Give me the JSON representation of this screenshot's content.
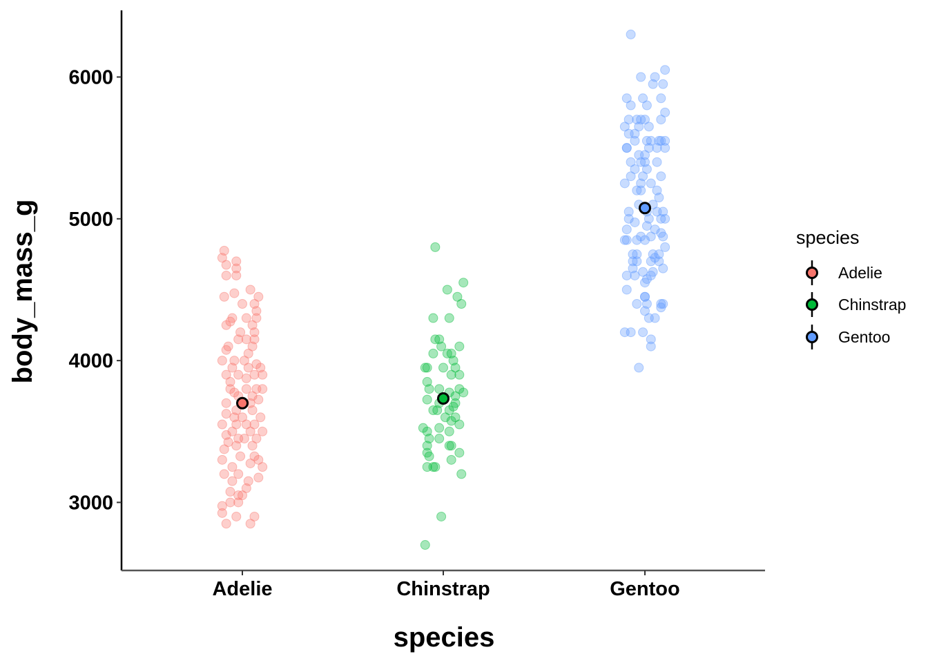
{
  "chart_data": {
    "type": "scatter",
    "subtype": "jitter-with-mean",
    "title": "",
    "xlabel": "species",
    "ylabel": "body_mass_g",
    "categories": [
      "Adelie",
      "Chinstrap",
      "Gentoo"
    ],
    "ylim": [
      2520,
      6470
    ],
    "yticks": [
      3000,
      4000,
      5000,
      6000
    ],
    "grid": false,
    "legend": {
      "title": "species",
      "position": "right",
      "entries": [
        "Adelie",
        "Chinstrap",
        "Gentoo"
      ]
    },
    "colors": {
      "Adelie": "#F8766D",
      "Chinstrap": "#00BA38",
      "Gentoo": "#619CFF"
    },
    "series": [
      {
        "name": "Adelie",
        "mean": 3700,
        "points": [
          [
            -0.09,
            4775
          ],
          [
            -0.1,
            4725
          ],
          [
            -0.03,
            4700
          ],
          [
            -0.03,
            4650
          ],
          [
            -0.08,
            4675
          ],
          [
            -0.08,
            4600
          ],
          [
            -0.03,
            4600
          ],
          [
            0.04,
            4500
          ],
          [
            -0.04,
            4475
          ],
          [
            -0.09,
            4450
          ],
          [
            0.08,
            4450
          ],
          [
            0.06,
            4400
          ],
          [
            0.07,
            4350
          ],
          [
            0,
            4400
          ],
          [
            -0.05,
            4300
          ],
          [
            0.02,
            4300
          ],
          [
            0.07,
            4300
          ],
          [
            -0.06,
            4275
          ],
          [
            -0.08,
            4250
          ],
          [
            0.05,
            4250
          ],
          [
            -0.01,
            4200
          ],
          [
            0.06,
            4200
          ],
          [
            -0.02,
            4150
          ],
          [
            0.02,
            4150
          ],
          [
            0.06,
            4150
          ],
          [
            -0.07,
            4100
          ],
          [
            0.05,
            4100
          ],
          [
            -0.08,
            4075
          ],
          [
            0.03,
            4050
          ],
          [
            -0.04,
            4000
          ],
          [
            0.01,
            4000
          ],
          [
            -0.1,
            4000
          ],
          [
            0.07,
            3975
          ],
          [
            0.09,
            3950
          ],
          [
            -0.05,
            3950
          ],
          [
            0.03,
            3950
          ],
          [
            -0.08,
            3900
          ],
          [
            -0.02,
            3900
          ],
          [
            0.06,
            3900
          ],
          [
            0.1,
            3900
          ],
          [
            0.02,
            3875
          ],
          [
            -0.06,
            3850
          ],
          [
            -0.06,
            3800
          ],
          [
            0.02,
            3800
          ],
          [
            0.07,
            3800
          ],
          [
            0.1,
            3800
          ],
          [
            -0.04,
            3775
          ],
          [
            0.05,
            3750
          ],
          [
            -0.02,
            3750
          ],
          [
            0.08,
            3725
          ],
          [
            -0.08,
            3700
          ],
          [
            0.01,
            3700
          ],
          [
            0.04,
            3700
          ],
          [
            -0.03,
            3650
          ],
          [
            0.05,
            3650
          ],
          [
            -0.08,
            3625
          ],
          [
            0,
            3600
          ],
          [
            -0.04,
            3600
          ],
          [
            0.09,
            3600
          ],
          [
            -0.03,
            3550
          ],
          [
            0.02,
            3550
          ],
          [
            0.06,
            3550
          ],
          [
            -0.1,
            3550
          ],
          [
            0.1,
            3500
          ],
          [
            -0.05,
            3500
          ],
          [
            0.04,
            3500
          ],
          [
            -0.08,
            3475
          ],
          [
            0.01,
            3450
          ],
          [
            -0.02,
            3450
          ],
          [
            0.07,
            3450
          ],
          [
            -0.07,
            3425
          ],
          [
            -0.03,
            3400
          ],
          [
            0.05,
            3400
          ],
          [
            -0.09,
            3375
          ],
          [
            -0.01,
            3325
          ],
          [
            0.06,
            3325
          ],
          [
            0.08,
            3300
          ],
          [
            -0.1,
            3300
          ],
          [
            -0.05,
            3250
          ],
          [
            0.1,
            3250
          ],
          [
            0.04,
            3275
          ],
          [
            -0.09,
            3200
          ],
          [
            -0.02,
            3200
          ],
          [
            0.08,
            3175
          ],
          [
            -0.05,
            3150
          ],
          [
            0.03,
            3150
          ],
          [
            -0.06,
            3075
          ],
          [
            0.02,
            3100
          ],
          [
            -0.02,
            3050
          ],
          [
            0,
            3050
          ],
          [
            -0.06,
            3000
          ],
          [
            -0.1,
            2975
          ],
          [
            -0.02,
            3000
          ],
          [
            -0.1,
            2925
          ],
          [
            -0.03,
            2900
          ],
          [
            0.06,
            2900
          ],
          [
            -0.08,
            2850
          ],
          [
            0.04,
            2850
          ]
        ]
      },
      {
        "name": "Chinstrap",
        "mean": 3733,
        "points": [
          [
            -0.04,
            4800
          ],
          [
            0.1,
            4550
          ],
          [
            0.02,
            4500
          ],
          [
            0.07,
            4450
          ],
          [
            0.09,
            4400
          ],
          [
            -0.05,
            4300
          ],
          [
            0.03,
            4300
          ],
          [
            -0.04,
            4150
          ],
          [
            -0.02,
            4150
          ],
          [
            -0.01,
            4100
          ],
          [
            0.08,
            4100
          ],
          [
            0.02,
            4050
          ],
          [
            -0.05,
            4050
          ],
          [
            0.04,
            4050
          ],
          [
            0.05,
            4000
          ],
          [
            -0.09,
            3950
          ],
          [
            -0.08,
            3950
          ],
          [
            0,
            3950
          ],
          [
            0.06,
            3950
          ],
          [
            0.04,
            3900
          ],
          [
            0.08,
            3900
          ],
          [
            -0.08,
            3850
          ],
          [
            -0.02,
            3800
          ],
          [
            0.08,
            3800
          ],
          [
            -0.07,
            3800
          ],
          [
            0.03,
            3775
          ],
          [
            0.1,
            3775
          ],
          [
            0.06,
            3750
          ],
          [
            -0.08,
            3725
          ],
          [
            -0.02,
            3700
          ],
          [
            0.06,
            3700
          ],
          [
            0.05,
            3675
          ],
          [
            0.03,
            3650
          ],
          [
            -0.03,
            3650
          ],
          [
            -0.05,
            3650
          ],
          [
            0.01,
            3600
          ],
          [
            0.06,
            3600
          ],
          [
            0.04,
            3575
          ],
          [
            0.08,
            3550
          ],
          [
            -0.02,
            3525
          ],
          [
            -0.1,
            3525
          ],
          [
            -0.08,
            3500
          ],
          [
            0.03,
            3500
          ],
          [
            -0.07,
            3450
          ],
          [
            -0.02,
            3450
          ],
          [
            0.04,
            3400
          ],
          [
            0.03,
            3400
          ],
          [
            -0.08,
            3400
          ],
          [
            0.08,
            3350
          ],
          [
            -0.08,
            3350
          ],
          [
            -0.07,
            3325
          ],
          [
            0.04,
            3300
          ],
          [
            -0.08,
            3250
          ],
          [
            -0.05,
            3250
          ],
          [
            -0.04,
            3250
          ],
          [
            0.09,
            3200
          ],
          [
            -0.01,
            2900
          ],
          [
            -0.09,
            2700
          ]
        ]
      },
      {
        "name": "Gentoo",
        "mean": 5076,
        "points": [
          [
            -0.07,
            6300
          ],
          [
            0.1,
            6050
          ],
          [
            -0.02,
            6000
          ],
          [
            0.05,
            6000
          ],
          [
            0.04,
            5950
          ],
          [
            0.09,
            5950
          ],
          [
            -0.09,
            5850
          ],
          [
            -0.01,
            5850
          ],
          [
            0.08,
            5850
          ],
          [
            -0.07,
            5800
          ],
          [
            0.01,
            5800
          ],
          [
            0.1,
            5750
          ],
          [
            -0.04,
            5700
          ],
          [
            0,
            5700
          ],
          [
            -0.08,
            5700
          ],
          [
            0.08,
            5700
          ],
          [
            -0.02,
            5700
          ],
          [
            -0.1,
            5650
          ],
          [
            -0.03,
            5650
          ],
          [
            0.02,
            5650
          ],
          [
            -0.08,
            5600
          ],
          [
            -0.05,
            5600
          ],
          [
            0.01,
            5550
          ],
          [
            0.07,
            5550
          ],
          [
            0.1,
            5550
          ],
          [
            0.03,
            5550
          ],
          [
            -0.05,
            5550
          ],
          [
            0.08,
            5550
          ],
          [
            -0.09,
            5500
          ],
          [
            0.02,
            5500
          ],
          [
            0.1,
            5500
          ],
          [
            0.06,
            5500
          ],
          [
            -0.09,
            5500
          ],
          [
            -0.03,
            5450
          ],
          [
            0,
            5450
          ],
          [
            -0.07,
            5400
          ],
          [
            -0.02,
            5400
          ],
          [
            0.06,
            5400
          ],
          [
            0,
            5400
          ],
          [
            -0.05,
            5350
          ],
          [
            0.01,
            5350
          ],
          [
            0.08,
            5300
          ],
          [
            -0.07,
            5300
          ],
          [
            -0.01,
            5300
          ],
          [
            -0.1,
            5250
          ],
          [
            -0.02,
            5250
          ],
          [
            0.03,
            5250
          ],
          [
            -0.02,
            5200
          ],
          [
            0.06,
            5200
          ],
          [
            -0.04,
            5200
          ],
          [
            0.07,
            5150
          ],
          [
            -0.03,
            5100
          ],
          [
            0.04,
            5100
          ],
          [
            0.06,
            5050
          ],
          [
            0.09,
            5050
          ],
          [
            -0.08,
            5050
          ],
          [
            0.01,
            5050
          ],
          [
            0.08,
            5000
          ],
          [
            0.1,
            5000
          ],
          [
            -0.08,
            5000
          ],
          [
            0.02,
            5000
          ],
          [
            -0.05,
            4975
          ],
          [
            0.01,
            4950
          ],
          [
            -0.09,
            4925
          ],
          [
            0.05,
            4925
          ],
          [
            0.08,
            4900
          ],
          [
            -0.02,
            4875
          ],
          [
            0.03,
            4875
          ],
          [
            0.09,
            4875
          ],
          [
            -0.1,
            4850
          ],
          [
            0,
            4850
          ],
          [
            -0.04,
            4850
          ],
          [
            -0.09,
            4850
          ],
          [
            0.1,
            4800
          ],
          [
            0.07,
            4750
          ],
          [
            -0.04,
            4750
          ],
          [
            0.04,
            4750
          ],
          [
            -0.06,
            4750
          ],
          [
            0.05,
            4725
          ],
          [
            0.03,
            4700
          ],
          [
            -0.06,
            4700
          ],
          [
            0.07,
            4700
          ],
          [
            -0.04,
            4700
          ],
          [
            -0.06,
            4650
          ],
          [
            0.09,
            4650
          ],
          [
            -0.01,
            4625
          ],
          [
            0.04,
            4625
          ],
          [
            -0.09,
            4600
          ],
          [
            -0.05,
            4600
          ],
          [
            0.03,
            4600
          ],
          [
            0.01,
            4575
          ],
          [
            0,
            4550
          ],
          [
            -0.09,
            4500
          ],
          [
            0,
            4450
          ],
          [
            0,
            4450
          ],
          [
            -0.04,
            4400
          ],
          [
            0.01,
            4400
          ],
          [
            0.08,
            4400
          ],
          [
            0.09,
            4400
          ],
          [
            0.08,
            4375
          ],
          [
            0,
            4350
          ],
          [
            0.05,
            4300
          ],
          [
            0.02,
            4300
          ],
          [
            -0.1,
            4200
          ],
          [
            -0.07,
            4200
          ],
          [
            -0.01,
            4200
          ],
          [
            0.03,
            4150
          ],
          [
            0.03,
            4100
          ],
          [
            -0.03,
            3950
          ]
        ]
      }
    ]
  }
}
